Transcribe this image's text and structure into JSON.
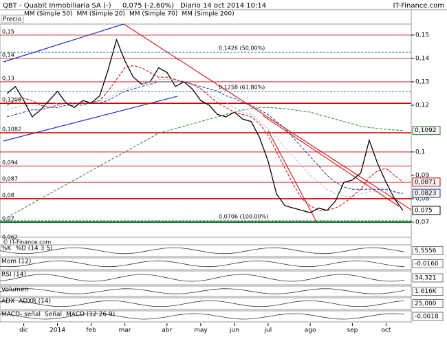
{
  "header": {
    "symbol": "QBT - Quabit Inmobiliaria SA (-)",
    "quote": "0,075 (-2,60%)",
    "period": "Diario",
    "datetime": "14 oct 2014 10:14",
    "brand": "IT-Finance.com"
  },
  "watermark": "© IT-Finance.com",
  "chart_data": {
    "type": "line",
    "categories": [
      null,
      null,
      "dic",
      null,
      null,
      null,
      "2014",
      null,
      null,
      null,
      "feb",
      null,
      null,
      null,
      "mar",
      null,
      null,
      null,
      null,
      "abr",
      null,
      null,
      null,
      "may",
      null,
      null,
      null,
      "jun",
      null,
      null,
      null,
      "jul",
      null,
      null,
      null,
      null,
      "ago",
      null,
      null,
      null,
      null,
      "sep",
      null,
      null,
      null,
      "oct",
      null,
      null
    ],
    "series": [
      {
        "name": "Precio",
        "color": "#000000",
        "dash": false,
        "last_label": "0,075",
        "values": [
          0.125,
          0.128,
          0.122,
          0.115,
          0.118,
          0.122,
          0.126,
          0.121,
          0.119,
          0.122,
          0.121,
          0.124,
          0.135,
          0.148,
          0.139,
          0.132,
          0.129,
          0.13,
          0.136,
          0.134,
          0.128,
          0.13,
          0.127,
          0.122,
          0.12,
          0.116,
          0.115,
          0.117,
          0.114,
          0.113,
          0.106,
          0.096,
          0.082,
          0.077,
          0.076,
          0.075,
          0.074,
          0.076,
          0.075,
          0.079,
          0.087,
          0.088,
          0.091,
          0.105,
          0.095,
          0.087,
          0.08,
          0.075
        ]
      },
      {
        "name": "MM (Simple 50)",
        "color": "#b0c4de",
        "dash": true,
        "values": [
          0.118,
          0.119,
          0.12,
          0.12,
          0.12,
          0.12,
          0.121,
          0.121,
          0.121,
          0.121,
          0.121,
          0.122,
          0.123,
          0.125,
          0.127,
          0.128,
          0.129,
          0.13,
          0.131,
          0.131,
          0.131,
          0.13,
          0.129,
          0.127,
          0.125,
          0.123,
          0.121,
          0.119,
          0.117,
          0.116,
          0.113,
          0.11,
          0.106,
          0.102,
          0.098,
          0.094,
          0.09,
          0.087,
          0.084,
          0.082,
          0.081,
          0.081,
          0.082,
          0.083,
          0.083,
          0.083,
          0.0825,
          0.082
        ]
      },
      {
        "name": "MM (Simple 20)",
        "color": "#cc0000",
        "dash": true,
        "last_label": "0,0871",
        "values": [
          0.12,
          0.122,
          0.123,
          0.122,
          0.12,
          0.119,
          0.12,
          0.121,
          0.121,
          0.121,
          0.121,
          0.122,
          0.126,
          0.131,
          0.136,
          0.137,
          0.136,
          0.134,
          0.132,
          0.132,
          0.131,
          0.13,
          0.129,
          0.127,
          0.124,
          0.121,
          0.119,
          0.117,
          0.116,
          0.115,
          0.112,
          0.107,
          0.1,
          0.093,
          0.086,
          0.08,
          0.077,
          0.075,
          0.075,
          0.076,
          0.078,
          0.081,
          0.084,
          0.089,
          0.092,
          0.093,
          0.09,
          0.0871
        ]
      },
      {
        "name": "MM (Simple 70)",
        "color": "#1a3a9a",
        "dash": true,
        "last_label": "0,0823",
        "values": [
          0.115,
          0.116,
          0.117,
          0.118,
          0.118,
          0.119,
          0.119,
          0.12,
          0.12,
          0.12,
          0.121,
          0.121,
          0.122,
          0.124,
          0.126,
          0.127,
          0.128,
          0.129,
          0.13,
          0.13,
          0.13,
          0.13,
          0.129,
          0.128,
          0.127,
          0.126,
          0.124,
          0.123,
          0.121,
          0.12,
          0.118,
          0.116,
          0.113,
          0.11,
          0.106,
          0.102,
          0.098,
          0.094,
          0.09,
          0.087,
          0.085,
          0.084,
          0.084,
          0.084,
          0.084,
          0.084,
          0.083,
          0.0823
        ]
      },
      {
        "name": "MM (Simple 200)",
        "color": "#2e7d32",
        "dash": true,
        "last_label": "0,1092",
        "values": [
          0.072,
          0.074,
          0.076,
          0.078,
          0.08,
          0.082,
          0.084,
          0.086,
          0.088,
          0.09,
          0.092,
          0.094,
          0.096,
          0.098,
          0.1,
          0.102,
          0.104,
          0.106,
          0.108,
          0.109,
          0.11,
          0.111,
          0.112,
          0.113,
          0.114,
          0.115,
          0.116,
          0.117,
          0.118,
          0.1185,
          0.119,
          0.119,
          0.1188,
          0.1185,
          0.118,
          0.1175,
          0.117,
          0.116,
          0.115,
          0.114,
          0.113,
          0.112,
          0.111,
          0.1105,
          0.11,
          0.1097,
          0.1094,
          0.1092
        ]
      }
    ],
    "ylim": [
      0.0635,
      0.1547
    ],
    "yticks": [
      {
        "value": 0.15,
        "label": "0,15"
      },
      {
        "value": 0.14,
        "label": "0,14"
      },
      {
        "value": 0.13,
        "label": "0,13"
      },
      {
        "value": 0.12,
        "label": "0,12"
      },
      {
        "value": 0.1,
        "label": "0,1"
      },
      {
        "value": 0.09,
        "label": "0,09"
      },
      {
        "value": 0.08,
        "label": "0,08"
      },
      {
        "value": 0.07,
        "label": "0,07"
      }
    ],
    "left_labels": [
      {
        "value": 0.15,
        "label": "0,15"
      },
      {
        "value": 0.14,
        "label": "0,14"
      },
      {
        "value": 0.13,
        "label": "0,13"
      },
      {
        "value": 0.1208,
        "label": "0,1208"
      },
      {
        "value": 0.1082,
        "label": "0,1082"
      },
      {
        "value": 0.094,
        "label": "0,094"
      },
      {
        "value": 0.087,
        "label": "0,087"
      },
      {
        "value": 0.08,
        "label": "0,08"
      },
      {
        "value": 0.07,
        "label": "0,07"
      },
      {
        "value": 0.062,
        "label": "0,062"
      }
    ],
    "levels": [
      0.15,
      0.14,
      0.13,
      0.1208,
      0.1082,
      0.1,
      0.094,
      0.087,
      0.08
    ],
    "level_color": "#cc0000",
    "support": 0.07,
    "support_color": "#1b7a1b",
    "fibonacci": [
      {
        "value": 0.1426,
        "label": "0,1426 (50,00%)"
      },
      {
        "value": 0.1258,
        "label": "0,1258 (61,80%)"
      },
      {
        "value": 0.0706,
        "label": "0,0706 (100,00%)"
      }
    ]
  },
  "indicators": [
    {
      "labels": [
        "%K",
        "%D (14 3 5)"
      ],
      "readout": "5,5556"
    },
    {
      "labels": [
        "Mom (12)"
      ],
      "readout": "-0,0160"
    },
    {
      "labels": [
        "RSI (14)"
      ],
      "readout": "34,321"
    },
    {
      "labels": [
        "Volumen"
      ],
      "readout": "1.616K"
    },
    {
      "labels": [
        "ADX",
        "ADXR (14)"
      ],
      "readout": "25,000"
    },
    {
      "labels": [
        "MACD- señal",
        "Señal",
        "MACD (12 26 9)"
      ],
      "readout": "-0,0018"
    }
  ]
}
